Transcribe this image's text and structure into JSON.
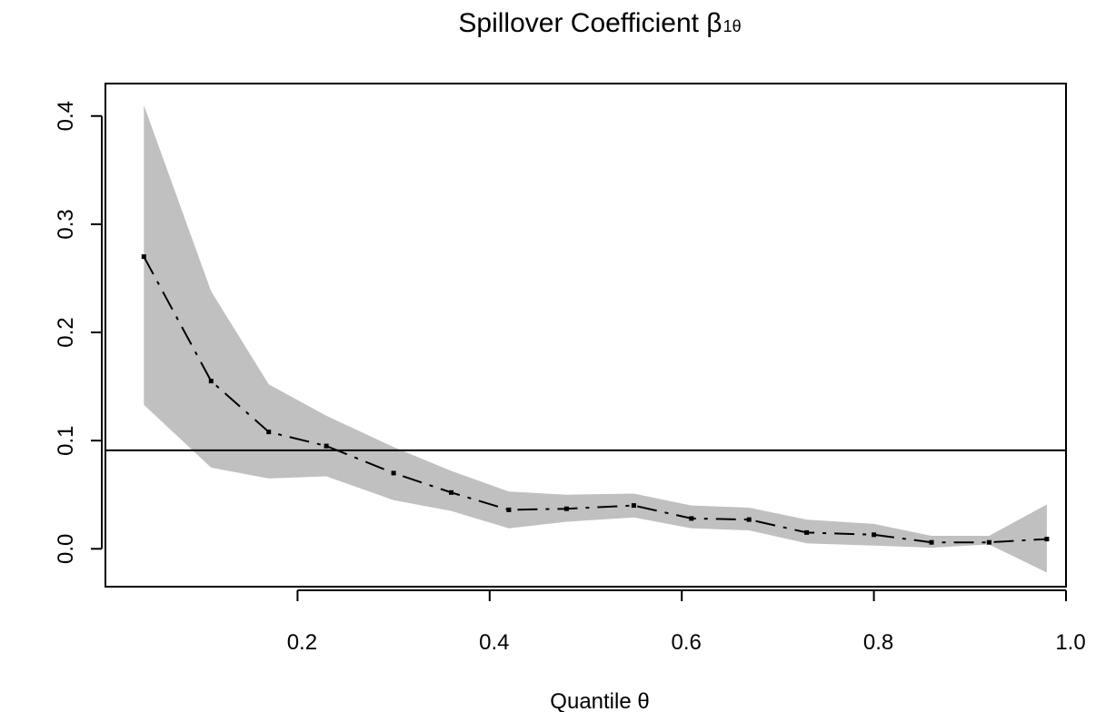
{
  "chart_data": {
    "type": "line",
    "title": "Spillover Coefficient β",
    "title_subscript": "1θ",
    "xlabel": "Quantile θ",
    "ylabel": "",
    "xlim": [
      0.0,
      1.0
    ],
    "ylim": [
      -0.035,
      0.43
    ],
    "x_ticks": [
      0.2,
      0.4,
      0.6,
      0.8,
      1.0
    ],
    "x_tick_labels": [
      "0.2",
      "0.4",
      "0.6",
      "0.8",
      "1.0"
    ],
    "y_ticks": [
      0.0,
      0.1,
      0.2,
      0.3,
      0.4
    ],
    "y_tick_labels": [
      "0.0",
      "0.1",
      "0.2",
      "0.3",
      "0.4"
    ],
    "grid": false,
    "x": [
      0.04,
      0.11,
      0.17,
      0.23,
      0.3,
      0.36,
      0.42,
      0.48,
      0.55,
      0.61,
      0.67,
      0.73,
      0.8,
      0.86,
      0.92,
      0.98
    ],
    "series": [
      {
        "style": "dash-dot",
        "color": "#000000",
        "values": [
          0.27,
          0.155,
          0.108,
          0.095,
          0.07,
          0.052,
          0.036,
          0.037,
          0.04,
          0.028,
          0.027,
          0.015,
          0.013,
          0.006,
          0.006,
          0.009
        ]
      }
    ],
    "band": {
      "color": "#c0c0c0",
      "lower": [
        0.133,
        0.075,
        0.065,
        0.067,
        0.045,
        0.035,
        0.019,
        0.025,
        0.029,
        0.019,
        0.017,
        0.005,
        0.003,
        0.001,
        0.004,
        -0.022
      ],
      "upper": [
        0.41,
        0.238,
        0.152,
        0.123,
        0.094,
        0.072,
        0.053,
        0.05,
        0.051,
        0.04,
        0.038,
        0.027,
        0.023,
        0.012,
        0.012,
        0.041
      ]
    },
    "hline": {
      "y": 0.091,
      "color": "#000000"
    }
  }
}
